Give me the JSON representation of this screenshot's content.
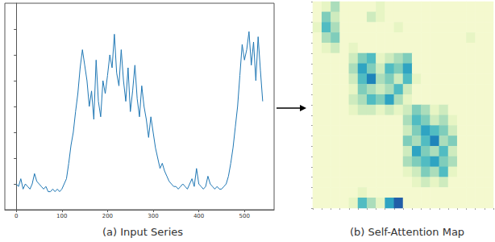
{
  "chart_data": [
    {
      "type": "line",
      "title": "(a) Input Series",
      "x": [
        0,
        5,
        10,
        15,
        20,
        25,
        30,
        35,
        40,
        45,
        50,
        55,
        60,
        65,
        70,
        75,
        80,
        85,
        90,
        95,
        100,
        105,
        110,
        115,
        120,
        125,
        130,
        135,
        140,
        145,
        150,
        155,
        160,
        165,
        170,
        175,
        180,
        185,
        190,
        195,
        200,
        205,
        210,
        215,
        220,
        225,
        230,
        235,
        240,
        245,
        250,
        255,
        260,
        265,
        270,
        275,
        280,
        285,
        290,
        295,
        300,
        305,
        310,
        315,
        320,
        325,
        330,
        335,
        340,
        345,
        350,
        355,
        360,
        365,
        370,
        375,
        380,
        385,
        390,
        395,
        400,
        405,
        410,
        415,
        420,
        425,
        430,
        435,
        440,
        445,
        450,
        455,
        460,
        465,
        470,
        475,
        480,
        485,
        490,
        495,
        500,
        505,
        510,
        515,
        520,
        525,
        530,
        535,
        540
      ],
      "series": [
        {
          "color": "#1f77b4",
          "values": [
            1.0,
            0.9,
            1.2,
            0.8,
            1.0,
            0.9,
            0.8,
            1.0,
            1.4,
            1.1,
            1.0,
            0.9,
            0.8,
            0.9,
            0.7,
            0.7,
            0.8,
            0.7,
            0.8,
            0.7,
            0.8,
            1.0,
            1.2,
            1.8,
            2.5,
            3.0,
            3.8,
            4.5,
            5.5,
            6.2,
            5.6,
            5.0,
            4.0,
            4.6,
            3.5,
            5.8,
            4.2,
            3.6,
            5.0,
            4.5,
            5.2,
            6.0,
            5.5,
            6.8,
            5.3,
            4.8,
            6.2,
            5.0,
            4.2,
            5.5,
            3.8,
            4.6,
            5.6,
            4.3,
            3.6,
            4.8,
            4.0,
            3.5,
            2.8,
            3.6,
            3.0,
            2.4,
            2.0,
            1.6,
            1.8,
            1.5,
            1.3,
            1.1,
            1.0,
            0.9,
            0.9,
            0.8,
            0.9,
            1.0,
            0.9,
            0.8,
            1.0,
            1.2,
            0.9,
            1.6,
            1.0,
            0.9,
            0.8,
            0.9,
            1.3,
            1.0,
            0.9,
            0.8,
            0.9,
            0.8,
            0.8,
            0.9,
            1.0,
            1.3,
            1.8,
            2.4,
            3.2,
            4.0,
            5.2,
            6.4,
            5.8,
            6.2,
            6.9,
            5.6,
            6.5,
            5.0,
            6.7,
            5.4,
            4.2
          ]
        }
      ],
      "xlim": [
        -25,
        565
      ],
      "xticks": [
        0,
        100,
        200,
        300,
        400,
        500
      ],
      "ylim": [
        0,
        8
      ],
      "yticks": [
        1,
        2,
        3,
        4,
        5,
        6,
        7
      ],
      "tick_labels": "x"
    },
    {
      "type": "heatmap",
      "title": "(b) Self-Attention Map",
      "cells": [
        [
          1,
          2,
          4,
          1,
          1,
          1,
          1,
          2,
          1,
          1,
          1,
          1,
          1,
          1,
          1,
          1,
          1,
          1,
          1,
          1
        ],
        [
          1,
          5,
          3,
          1,
          1,
          1,
          3,
          2,
          1,
          1,
          1,
          1,
          1,
          1,
          1,
          1,
          1,
          1,
          1,
          1
        ],
        [
          2,
          6,
          4,
          1,
          1,
          1,
          1,
          1,
          1,
          2,
          1,
          1,
          1,
          1,
          1,
          1,
          1,
          1,
          1,
          1
        ],
        [
          1,
          4,
          5,
          1,
          1,
          1,
          1,
          1,
          1,
          1,
          1,
          1,
          1,
          1,
          1,
          1,
          1,
          2,
          1,
          1
        ],
        [
          1,
          2,
          3,
          1,
          2,
          1,
          1,
          1,
          1,
          1,
          1,
          1,
          1,
          1,
          1,
          1,
          1,
          1,
          1,
          1
        ],
        [
          1,
          1,
          1,
          1,
          3,
          5,
          6,
          2,
          3,
          4,
          5,
          1,
          1,
          1,
          1,
          1,
          1,
          1,
          1,
          1
        ],
        [
          1,
          1,
          1,
          1,
          4,
          7,
          5,
          3,
          6,
          5,
          7,
          1,
          1,
          1,
          1,
          1,
          1,
          1,
          1,
          1
        ],
        [
          1,
          1,
          1,
          1,
          3,
          6,
          8,
          4,
          5,
          3,
          6,
          2,
          1,
          1,
          1,
          1,
          1,
          1,
          1,
          1
        ],
        [
          1,
          1,
          1,
          1,
          2,
          5,
          4,
          3,
          4,
          6,
          3,
          1,
          1,
          1,
          1,
          1,
          1,
          1,
          1,
          1
        ],
        [
          1,
          1,
          1,
          1,
          3,
          4,
          6,
          5,
          7,
          4,
          2,
          1,
          1,
          1,
          1,
          1,
          1,
          1,
          1,
          1
        ],
        [
          1,
          1,
          1,
          1,
          2,
          3,
          3,
          2,
          3,
          2,
          3,
          5,
          4,
          2,
          3,
          1,
          1,
          1,
          1,
          1
        ],
        [
          1,
          1,
          1,
          1,
          1,
          1,
          1,
          1,
          1,
          1,
          4,
          6,
          5,
          3,
          4,
          2,
          1,
          1,
          1,
          1
        ],
        [
          1,
          1,
          1,
          1,
          1,
          1,
          1,
          1,
          1,
          1,
          3,
          5,
          7,
          6,
          5,
          3,
          1,
          1,
          1,
          1
        ],
        [
          1,
          1,
          1,
          1,
          1,
          1,
          1,
          1,
          1,
          1,
          5,
          4,
          6,
          8,
          4,
          5,
          1,
          1,
          1,
          1
        ],
        [
          1,
          1,
          1,
          1,
          1,
          1,
          1,
          1,
          1,
          1,
          3,
          7,
          5,
          4,
          6,
          3,
          1,
          1,
          1,
          1
        ],
        [
          1,
          1,
          1,
          1,
          1,
          1,
          1,
          1,
          1,
          1,
          4,
          5,
          6,
          7,
          5,
          4,
          1,
          1,
          1,
          1
        ],
        [
          1,
          1,
          1,
          1,
          1,
          1,
          1,
          1,
          1,
          1,
          2,
          3,
          5,
          4,
          6,
          2,
          1,
          1,
          1,
          1
        ],
        [
          1,
          1,
          1,
          1,
          1,
          1,
          1,
          1,
          1,
          1,
          1,
          2,
          3,
          2,
          3,
          1,
          1,
          1,
          1,
          1
        ],
        [
          1,
          1,
          1,
          1,
          1,
          2,
          1,
          1,
          1,
          1,
          1,
          1,
          1,
          1,
          1,
          1,
          1,
          1,
          1,
          1
        ],
        [
          1,
          1,
          1,
          1,
          2,
          6,
          4,
          2,
          7,
          9,
          1,
          1,
          1,
          1,
          1,
          1,
          1,
          1,
          1,
          1
        ]
      ],
      "tick_labels": false
    }
  ]
}
